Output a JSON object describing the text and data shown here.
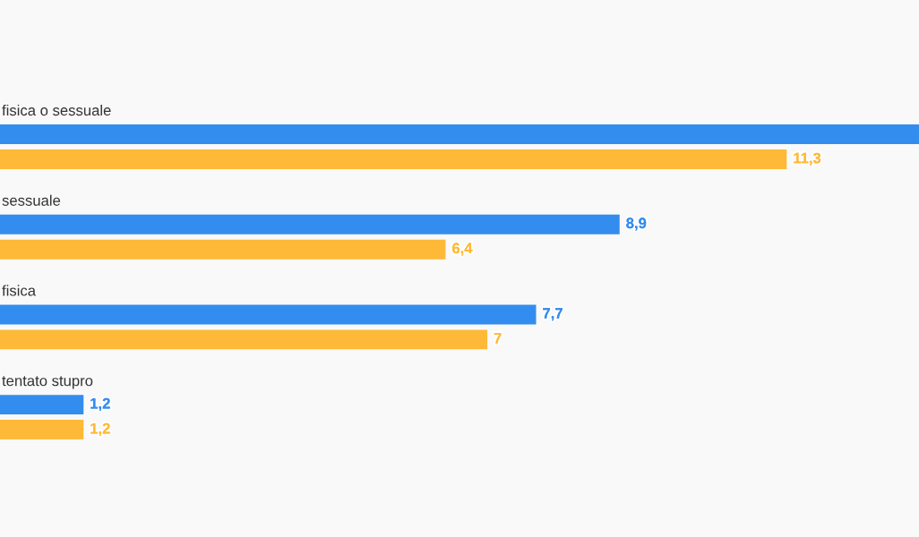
{
  "chart_data": {
    "type": "bar",
    "orientation": "horizontal",
    "categories": [
      "fisica o sessuale",
      "sessuale",
      "fisica",
      "tentato stupro"
    ],
    "series": [
      {
        "color": "#338def",
        "values": [
          13.2,
          8.9,
          7.7,
          1.2
        ],
        "value_labels": [
          null,
          "8,9",
          "7,7",
          "1,2"
        ]
      },
      {
        "color": "#ffb938",
        "values": [
          11.3,
          6.4,
          7,
          1.2
        ],
        "value_labels": [
          "11,3",
          "6,4",
          "7",
          "1,2"
        ]
      }
    ],
    "xlim": [
      0,
      13.2
    ],
    "tick_labels": false
  }
}
